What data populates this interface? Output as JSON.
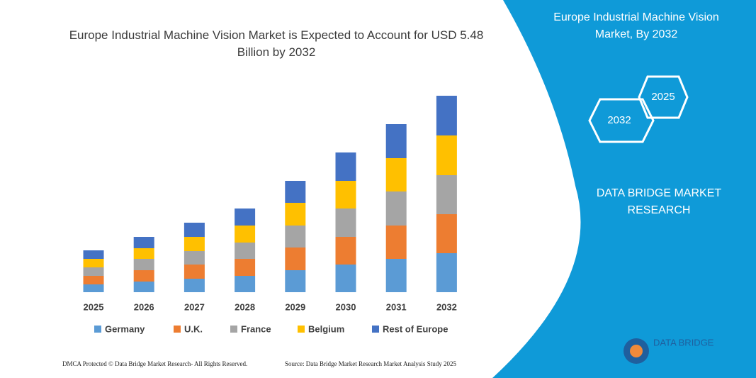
{
  "chart_data": {
    "type": "bar",
    "stacked": true,
    "title": "Europe Industrial Machine Vision Market is Expected to Account for USD 5.48 Billion by 2032",
    "categories": [
      "2025",
      "2026",
      "2027",
      "2028",
      "2029",
      "2030",
      "2031",
      "2032"
    ],
    "series": [
      {
        "name": "Germany",
        "color": "#5b9bd5",
        "values": [
          11,
          15,
          19,
          23,
          31,
          39,
          47,
          55
        ]
      },
      {
        "name": "U.K.",
        "color": "#ed7d31",
        "values": [
          12,
          16,
          20,
          24,
          32,
          39,
          47,
          55
        ]
      },
      {
        "name": "France",
        "color": "#a5a5a5",
        "values": [
          12,
          16,
          19,
          23,
          31,
          40,
          48,
          55
        ]
      },
      {
        "name": "Belgium",
        "color": "#ffc000",
        "values": [
          12,
          15,
          20,
          24,
          32,
          39,
          47,
          56
        ]
      },
      {
        "name": "Rest of Europe",
        "color": "#4472c4",
        "values": [
          12,
          16,
          20,
          24,
          31,
          40,
          48,
          56
        ]
      }
    ]
  },
  "sidebar": {
    "title": "Europe Industrial Machine Vision Market, By 2032",
    "hex_left": "2032",
    "hex_right": "2025",
    "brand": "DATA BRIDGE MARKET RESEARCH",
    "logo": "DATA BRIDGE"
  },
  "footer": {
    "dmca": "DMCA Protected © Data Bridge Market Research- All Rights Reserved.",
    "source": "Source: Data Bridge Market Research Market Analysis Study 2025"
  }
}
